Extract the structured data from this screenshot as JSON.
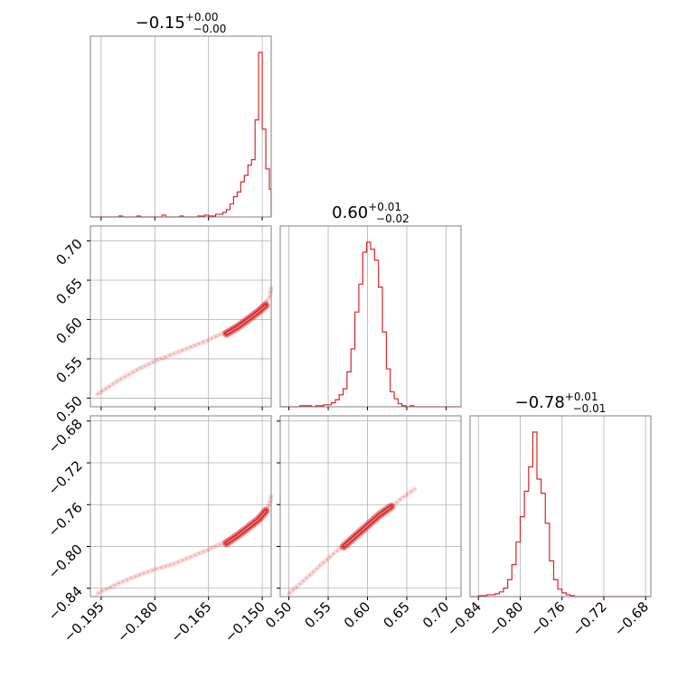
{
  "colors": {
    "series": "#d62728",
    "grid": "#b0b0b0",
    "frame": "#808080"
  },
  "chart_data": {
    "type": "corner",
    "parameters": [
      {
        "median": "−0.15",
        "plus": "+0.00",
        "minus": "−0.00",
        "range": [
          -0.198,
          -0.1475
        ],
        "ticks": [
          -0.195,
          -0.18,
          -0.165,
          -0.15
        ],
        "tick_labels": [
          "−0.195",
          "−0.180",
          "−0.165",
          "−0.150"
        ]
      },
      {
        "median": "0.60",
        "plus": "+0.01",
        "minus": "−0.02",
        "range": [
          0.489,
          0.719
        ],
        "ticks": [
          0.5,
          0.55,
          0.6,
          0.65,
          0.7
        ],
        "tick_labels": [
          "0.50",
          "0.55",
          "0.60",
          "0.65",
          "0.70"
        ]
      },
      {
        "median": "−0.78",
        "plus": "+0.01",
        "minus": "−0.01",
        "range": [
          -0.848,
          -0.675
        ],
        "ticks": [
          -0.84,
          -0.8,
          -0.76,
          -0.72,
          -0.68
        ],
        "tick_labels": [
          "−0.84",
          "−0.80",
          "−0.76",
          "−0.72",
          "−0.68"
        ]
      }
    ],
    "histograms": [
      {
        "param": 0,
        "bin_edges": [
          -0.198,
          -0.197,
          -0.196,
          -0.195,
          -0.194,
          -0.193,
          -0.192,
          -0.191,
          -0.19,
          -0.189,
          -0.188,
          -0.187,
          -0.186,
          -0.185,
          -0.184,
          -0.183,
          -0.182,
          -0.181,
          -0.18,
          -0.179,
          -0.178,
          -0.177,
          -0.176,
          -0.175,
          -0.174,
          -0.173,
          -0.172,
          -0.171,
          -0.17,
          -0.169,
          -0.168,
          -0.167,
          -0.166,
          -0.165,
          -0.164,
          -0.163,
          -0.162,
          -0.161,
          -0.16,
          -0.159,
          -0.158,
          -0.157,
          -0.156,
          -0.155,
          -0.154,
          -0.153,
          -0.152,
          -0.151,
          -0.15,
          -0.149,
          -0.148,
          -0.1475
        ],
        "counts": [
          0,
          0,
          0,
          0,
          0,
          0,
          0,
          0,
          1,
          0,
          0,
          0,
          0,
          1,
          0,
          0,
          0,
          0,
          0,
          0,
          2,
          0,
          0,
          0,
          0,
          1,
          0,
          0,
          0,
          0,
          1,
          1,
          2,
          1,
          1,
          3,
          3,
          5,
          8,
          14,
          22,
          27,
          38,
          45,
          56,
          62,
          105,
          178,
          95,
          52,
          30
        ]
      },
      {
        "param": 1,
        "bin_edges": [
          0.489,
          0.494,
          0.499,
          0.504,
          0.509,
          0.514,
          0.519,
          0.524,
          0.529,
          0.534,
          0.539,
          0.544,
          0.549,
          0.554,
          0.559,
          0.564,
          0.569,
          0.574,
          0.579,
          0.584,
          0.589,
          0.594,
          0.599,
          0.604,
          0.609,
          0.614,
          0.619,
          0.624,
          0.629,
          0.634,
          0.639,
          0.644,
          0.649,
          0.654,
          0.659,
          0.664,
          0.669,
          0.674,
          0.679,
          0.684,
          0.689,
          0.694,
          0.699,
          0.704,
          0.709,
          0.714,
          0.719
        ],
        "counts": [
          0,
          0,
          0,
          0,
          0,
          1,
          1,
          1,
          0,
          1,
          1,
          2,
          2,
          4,
          7,
          12,
          18,
          35,
          58,
          95,
          123,
          155,
          165,
          158,
          147,
          120,
          75,
          38,
          15,
          8,
          3,
          1,
          0,
          1,
          0,
          0,
          0,
          0,
          0,
          0,
          0,
          0,
          0,
          0,
          0,
          0
        ]
      },
      {
        "param": 2,
        "bin_edges": [
          -0.848,
          -0.844,
          -0.84,
          -0.836,
          -0.832,
          -0.828,
          -0.824,
          -0.82,
          -0.816,
          -0.812,
          -0.808,
          -0.804,
          -0.8,
          -0.796,
          -0.792,
          -0.788,
          -0.784,
          -0.78,
          -0.776,
          -0.772,
          -0.768,
          -0.764,
          -0.76,
          -0.756,
          -0.752,
          -0.748,
          -0.744,
          -0.74,
          -0.736,
          -0.732,
          -0.728,
          -0.724,
          -0.72,
          -0.716,
          -0.712,
          -0.708,
          -0.704,
          -0.7,
          -0.696,
          -0.692,
          -0.688,
          -0.684,
          -0.68,
          -0.676
        ],
        "counts": [
          0,
          0,
          1,
          1,
          2,
          2,
          3,
          5,
          9,
          18,
          34,
          58,
          85,
          112,
          138,
          175,
          125,
          110,
          78,
          38,
          18,
          8,
          4,
          2,
          1,
          0,
          0,
          0,
          0,
          0,
          0,
          0,
          0,
          0,
          0,
          0,
          0,
          0,
          0,
          0,
          0,
          0,
          0
        ]
      }
    ],
    "pairs": [
      {
        "x": 0,
        "y": 1,
        "trend": [
          [
            -0.196,
            0.505
          ],
          [
            -0.19,
            0.523
          ],
          [
            -0.185,
            0.536
          ],
          [
            -0.18,
            0.547
          ],
          [
            -0.175,
            0.556
          ],
          [
            -0.17,
            0.565
          ],
          [
            -0.165,
            0.574
          ],
          [
            -0.16,
            0.585
          ],
          [
            -0.155,
            0.598
          ],
          [
            -0.152,
            0.608
          ],
          [
            -0.15,
            0.617
          ],
          [
            -0.148,
            0.628
          ],
          [
            -0.1475,
            0.64
          ]
        ],
        "core": [
          [
            -0.16,
            0.582
          ],
          [
            -0.157,
            0.59
          ],
          [
            -0.154,
            0.6
          ],
          [
            -0.151,
            0.61
          ],
          [
            -0.149,
            0.618
          ]
        ]
      },
      {
        "x": 0,
        "y": 2,
        "trend": [
          [
            -0.196,
            -0.845
          ],
          [
            -0.19,
            -0.835
          ],
          [
            -0.185,
            -0.828
          ],
          [
            -0.18,
            -0.822
          ],
          [
            -0.175,
            -0.817
          ],
          [
            -0.17,
            -0.81
          ],
          [
            -0.165,
            -0.803
          ],
          [
            -0.16,
            -0.795
          ],
          [
            -0.155,
            -0.786
          ],
          [
            -0.152,
            -0.778
          ],
          [
            -0.15,
            -0.77
          ],
          [
            -0.148,
            -0.76
          ],
          [
            -0.1475,
            -0.752
          ]
        ],
        "core": [
          [
            -0.16,
            -0.797
          ],
          [
            -0.157,
            -0.79
          ],
          [
            -0.154,
            -0.782
          ],
          [
            -0.151,
            -0.774
          ],
          [
            -0.149,
            -0.766
          ]
        ]
      },
      {
        "x": 1,
        "y": 2,
        "trend": [
          [
            0.5,
            -0.845
          ],
          [
            0.52,
            -0.832
          ],
          [
            0.54,
            -0.818
          ],
          [
            0.56,
            -0.805
          ],
          [
            0.58,
            -0.792
          ],
          [
            0.6,
            -0.78
          ],
          [
            0.62,
            -0.768
          ],
          [
            0.64,
            -0.756
          ],
          [
            0.66,
            -0.745
          ]
        ],
        "core": [
          [
            0.57,
            -0.8
          ],
          [
            0.585,
            -0.79
          ],
          [
            0.6,
            -0.78
          ],
          [
            0.615,
            -0.77
          ],
          [
            0.63,
            -0.762
          ]
        ]
      }
    ]
  }
}
